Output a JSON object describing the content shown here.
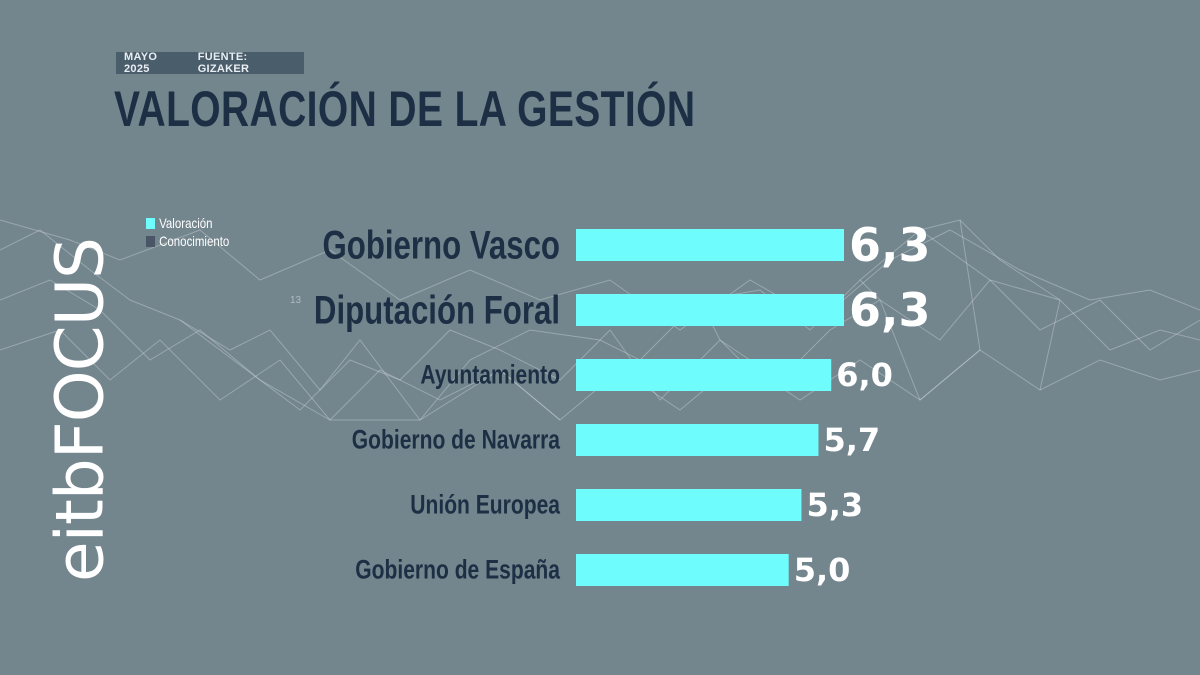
{
  "meta": {
    "date": "MAYO 2025",
    "source": "FUENTE: GIZAKER"
  },
  "brand": {
    "logo": "eitbFOCUS"
  },
  "background_label": "13",
  "colors": {
    "bar": "#6ffcfc",
    "conocimiento": "#4a5566",
    "title": "#1d2f44",
    "background": "#73858d"
  },
  "legend": [
    {
      "label": "Valoración",
      "color": "#6ffcfc"
    },
    {
      "label": "Conocimiento",
      "color": "#4a5566"
    }
  ],
  "chart_data": {
    "type": "bar",
    "orientation": "horizontal",
    "title": "VALORACIÓN DE LA GESTIÓN",
    "series": [
      {
        "name": "Valoración",
        "values": [
          6.3,
          6.3,
          6.0,
          5.7,
          5.3,
          5.0
        ]
      }
    ],
    "categories": [
      "Gobierno Vasco",
      "Diputación Foral",
      "Ayuntamiento",
      "Gobierno de Navarra",
      "Unión Europea",
      "Gobierno de España"
    ],
    "value_labels": [
      "6,3",
      "6,3",
      "6,0",
      "5,7",
      "5,3",
      "5,0"
    ],
    "emphasis": [
      true,
      true,
      false,
      false,
      false,
      false
    ],
    "xlim": [
      0,
      6.3
    ],
    "grid": false
  }
}
